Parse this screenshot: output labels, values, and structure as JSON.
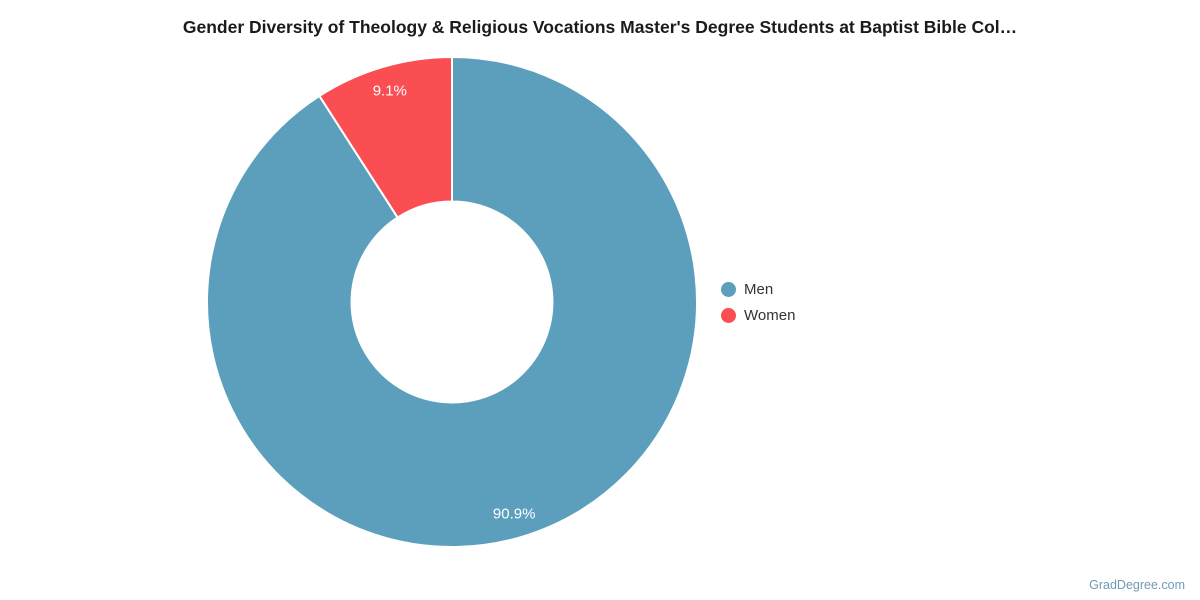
{
  "chart_data": {
    "type": "pie",
    "subtype": "donut",
    "title": "Gender Diversity of Theology & Religious Vocations Master's Degree Students at Baptist Bible Col…",
    "series": [
      {
        "name": "Men",
        "value": 90.9,
        "label": "90.9%",
        "color": "#5b9fbd"
      },
      {
        "name": "Women",
        "value": 9.1,
        "label": "9.1%",
        "color": "#fb4e53"
      }
    ],
    "start_angle_deg": 0,
    "direction": "clockwise",
    "inner_radius_ratio": 0.41,
    "slice_label_color": "#ffffff",
    "slice_border_color": "#ffffff",
    "legend_position": "right"
  },
  "footer": {
    "watermark": "GradDegree.com"
  }
}
